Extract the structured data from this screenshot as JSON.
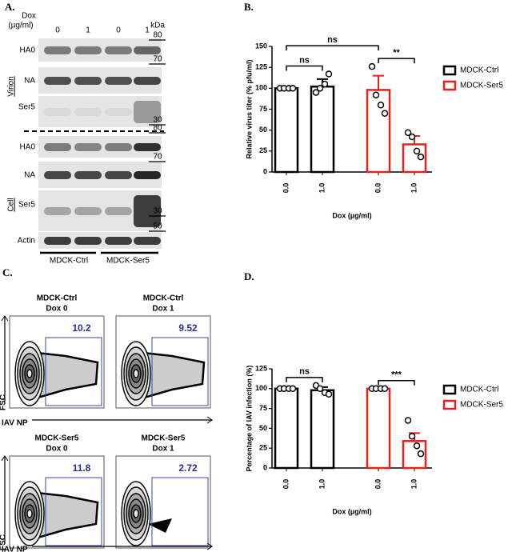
{
  "panels": {
    "a": {
      "label": "A.",
      "dox_label": [
        "Dox",
        "(µg/ml)"
      ],
      "lanes": [
        0,
        1,
        0,
        1
      ],
      "kda": "kDa",
      "blots": [
        "HA0",
        "NA",
        "Ser5",
        "HA0",
        "NA",
        "Ser5",
        "Actin"
      ],
      "sections": [
        "Virion",
        "Cell"
      ],
      "markers": [
        80,
        70,
        30,
        80,
        70,
        30,
        50
      ],
      "groups": [
        "MDCK-Ctrl",
        "MDCK-Ser5"
      ]
    },
    "b": {
      "label": "B."
    },
    "c": {
      "label": "C.",
      "y_axis": "FSC",
      "x_axis": "IAV NP",
      "plots": [
        {
          "title": [
            "MDCK-Ctrl",
            "Dox 0"
          ],
          "gate": 10.2
        },
        {
          "title": [
            "MDCK-Ctrl",
            "Dox 1"
          ],
          "gate": 9.52
        },
        {
          "title": [
            "MDCK-Ser5",
            "Dox 0"
          ],
          "gate": 11.8
        },
        {
          "title": [
            "MDCK-Ser5",
            "Dox 1"
          ],
          "gate": 2.72
        }
      ]
    },
    "d": {
      "label": "D."
    }
  },
  "chart_data": [
    {
      "type": "bar",
      "categories": [
        "0.0",
        "1.0",
        "0.0",
        "1.0"
      ],
      "series": [
        {
          "name": "MDCK-Ctrl",
          "color": "#000000",
          "values": [
            100,
            102,
            null,
            null
          ],
          "errors": [
            0,
            9,
            null,
            null
          ],
          "points": [
            [
              100,
              100,
              100,
              100
            ],
            [
              95,
              100,
              105,
              117
            ],
            null,
            null
          ]
        },
        {
          "name": "MDCK-Ser5",
          "color": "#e8201c",
          "values": [
            null,
            null,
            98,
            33
          ],
          "errors": [
            null,
            null,
            17,
            10
          ],
          "points": [
            null,
            null,
            [
              126,
              92,
              80,
              70
            ],
            [
              47,
              42,
              25,
              18
            ]
          ]
        }
      ],
      "ylabel": "Relative virus titer (% pfu/ml)",
      "xlabel": "Dox (µg/ml)",
      "ylim": [
        0,
        150
      ],
      "yticks": [
        0,
        25,
        50,
        75,
        100,
        125,
        150
      ],
      "annotations": [
        {
          "text": "ns",
          "from": 0,
          "to": 1
        },
        {
          "text": "ns",
          "from": 0,
          "to": 2
        },
        {
          "text": "**",
          "from": 2,
          "to": 3
        }
      ],
      "legend": "right"
    },
    {
      "type": "bar",
      "categories": [
        "0.0",
        "1.0",
        "0.0",
        "1.0"
      ],
      "series": [
        {
          "name": "MDCK-Ctrl",
          "color": "#000000",
          "values": [
            100,
            98,
            null,
            null
          ],
          "errors": [
            0,
            4,
            null,
            null
          ],
          "points": [
            [
              100,
              100,
              100,
              100
            ],
            [
              104,
              100,
              95,
              93
            ],
            null,
            null
          ]
        },
        {
          "name": "MDCK-Ser5",
          "color": "#e8201c",
          "values": [
            null,
            null,
            100,
            34
          ],
          "errors": [
            null,
            null,
            0,
            10
          ],
          "points": [
            null,
            null,
            [
              100,
              100,
              100,
              100
            ],
            [
              60,
              40,
              28,
              18
            ]
          ]
        }
      ],
      "ylabel": "Percentage of IAV infection (%)",
      "xlabel": "Dox (µg/ml)",
      "ylim": [
        0,
        125
      ],
      "yticks": [
        0,
        25,
        50,
        75,
        100,
        125
      ],
      "annotations": [
        {
          "text": "ns",
          "from": 0,
          "to": 1
        },
        {
          "text": "***",
          "from": 2,
          "to": 3
        }
      ],
      "legend": "right"
    }
  ]
}
